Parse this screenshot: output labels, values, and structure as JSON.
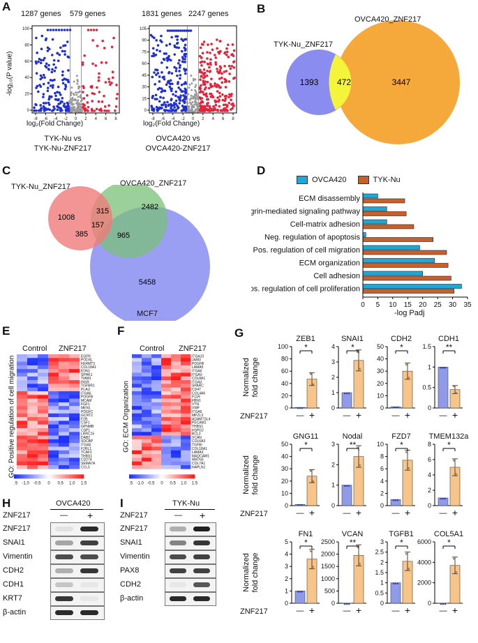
{
  "panel_labels": {
    "a": "A",
    "b": "B",
    "c": "C",
    "d": "D",
    "e": "E",
    "f": "F",
    "g": "G",
    "h": "H",
    "i": "I"
  },
  "volcano": {
    "y_label": "-log₁₀(P value)",
    "x_label": "log₂(Fold Change)",
    "plots": [
      {
        "down_count": "1287 genes",
        "up_count": "579 genes",
        "y_ticks": [
          "100",
          "80",
          "60",
          "40",
          "20",
          "0"
        ],
        "x_ticks": [
          "-8",
          "-6",
          "-4",
          "-2",
          "0",
          "2",
          "4",
          "6",
          "8"
        ],
        "caption_line1": "TYK-Nu vs",
        "caption_line2": "TYK-Nu-ZNF217"
      },
      {
        "down_count": "1831 genes",
        "up_count": "2247 genes",
        "y_ticks": [
          "105",
          "90",
          "75",
          "60",
          "45",
          "30",
          "15",
          "0"
        ],
        "x_ticks": [
          "-8",
          "-6",
          "-4",
          "-2",
          "0",
          "2",
          "4",
          "6",
          "8"
        ],
        "caption_line1": "OVCA420 vs",
        "caption_line2": "OVCA420-ZNF217"
      }
    ]
  },
  "venn_b": {
    "left_label": "TYK-Nu_ZNF217",
    "right_label": "OVCA420_ZNF217",
    "left_only": "1393",
    "overlap": "472",
    "right_only": "3447"
  },
  "venn_c": {
    "a_label": "TYK-Nu_ZNF217",
    "b_label": "OVCA420_ZNF217",
    "c_label": "MCF7",
    "a_only": "1008",
    "ab": "315",
    "b_only": "2482",
    "abc": "157",
    "ac": "385",
    "bc": "965",
    "c_only": "5458"
  },
  "chart_data": [
    {
      "type": "bar",
      "orientation": "horizontal",
      "legend": [
        "OVCA420",
        "TYK-Nu"
      ],
      "xlabel": "-log Padj",
      "xlim": [
        0,
        35
      ],
      "x_ticks": [
        "0",
        "5",
        "10",
        "15",
        "20",
        "25",
        "30",
        "35"
      ],
      "categories": [
        "ECM disassembly",
        "Integrin-mediated signaling pathway",
        "Cell-matrix adhesion",
        "Neg. regulation of apoptosis",
        "Pos. regulation of cell migration",
        "ECM organization",
        "Cell adhesion",
        "Pos. regulation of cell proliferation"
      ],
      "series": [
        {
          "name": "OVCA420",
          "color": "#1ea8d8",
          "values": [
            5,
            8,
            8,
            1,
            19,
            24,
            20,
            33
          ]
        },
        {
          "name": "TYK-Nu",
          "color": "#c8602c",
          "values": [
            14,
            14.5,
            17,
            23.5,
            28,
            28.5,
            29.5,
            30.5
          ]
        }
      ]
    },
    {
      "type": "bar",
      "panel": "G",
      "y_label": "Normalized fold change",
      "group_label": "ZNF217",
      "x_ticks": [
        "—",
        "+"
      ],
      "colors": {
        "control": "#8f9ae8",
        "znf217": "#f7c48a"
      },
      "genes": [
        {
          "name": "ZEB1",
          "values": [
            1,
            47
          ],
          "yticks": [
            "0",
            "20",
            "40",
            "60",
            "80",
            "100"
          ],
          "ymax": 100,
          "sig": "*"
        },
        {
          "name": "SNAI1",
          "values": [
            1,
            3.1
          ],
          "yticks": [
            "0",
            "1",
            "2",
            "3",
            "4"
          ],
          "ymax": 4,
          "sig": "*"
        },
        {
          "name": "CDH2",
          "values": [
            1,
            30
          ],
          "yticks": [
            "0",
            "10",
            "20",
            "30",
            "40",
            "50"
          ],
          "ymax": 50,
          "sig": "*"
        },
        {
          "name": "CDH1",
          "values": [
            1,
            0.45
          ],
          "yticks": [
            "0",
            "0.5",
            "1",
            "1.5"
          ],
          "ymax": 1.5,
          "sig": "**"
        },
        {
          "name": "GNG11",
          "values": [
            1,
            24
          ],
          "yticks": [
            "0",
            "10",
            "20",
            "30",
            "40",
            "50"
          ],
          "ymax": 50,
          "sig": "*"
        },
        {
          "name": "Nodal",
          "values": [
            1,
            2.4
          ],
          "yticks": [
            "0",
            "1",
            "2",
            "3"
          ],
          "ymax": 3,
          "sig": "**"
        },
        {
          "name": "FZD7",
          "values": [
            1,
            7.4
          ],
          "yticks": [
            "0",
            "2",
            "4",
            "6",
            "8",
            "10"
          ],
          "ymax": 10,
          "sig": "*"
        },
        {
          "name": "TMEM132a",
          "values": [
            1,
            5
          ],
          "yticks": [
            "0",
            "2",
            "4",
            "6",
            "8"
          ],
          "ymax": 8,
          "sig": "*"
        },
        {
          "name": "FN1",
          "values": [
            1,
            3.6
          ],
          "yticks": [
            "0",
            "1",
            "2",
            "3",
            "4",
            "5"
          ],
          "ymax": 5,
          "sig": "*"
        },
        {
          "name": "VCAN",
          "values": [
            1,
            1950
          ],
          "yticks": [
            "0",
            "500",
            "1000",
            "1500",
            "2000",
            "2500"
          ],
          "ymax": 2500,
          "sig": "**"
        },
        {
          "name": "TGFB1",
          "values": [
            1,
            2.05
          ],
          "yticks": [
            "0",
            "0.5",
            "1",
            "1.5",
            "2",
            "2.5",
            "3"
          ],
          "ymax": 3,
          "sig": "*"
        },
        {
          "name": "COL5A1",
          "values": [
            1,
            3700
          ],
          "yticks": [
            "0",
            "2000",
            "4000",
            "6000"
          ],
          "ymax": 6000,
          "sig": "*"
        }
      ]
    }
  ],
  "heatmap_e": {
    "control_label": "Control",
    "znf_label": "ZNF217",
    "go_label": "GO: Positive regulation of cell migration",
    "genes": [
      "EGFR",
      "PODXL",
      "FERMT3",
      "COL18A1",
      "EDN1",
      "SPHK1",
      "TIAM1",
      "INSR",
      "TGFBR1",
      "PLAU",
      "ITGA6",
      "PDGFB",
      "MCAM",
      "FGF1",
      "MEN1",
      "PDGFC",
      "GCNT2",
      "F2R",
      "CSF1",
      "GPNMB",
      "CSP1",
      "LRRC15",
      "DAB2",
      "SDCBP",
      "ITGA5",
      "F2RL1",
      "TCAF2",
      "THBS1",
      "CD274",
      "SEMA7A",
      "CCL5"
    ],
    "scale": [
      "-1.5",
      "-1.0",
      "-0.5",
      "0",
      "0.5",
      "1.0",
      "1.5"
    ]
  },
  "heatmap_f": {
    "control_label": "Control",
    "znf_label": "ZNF217",
    "go_label": "GO: ECM Organization",
    "genes": [
      "ITGA10",
      "JAM3",
      "PDGFB",
      "LAMA5",
      "ITGA6",
      "ITGAX",
      "COL8A1",
      "ITGA3",
      "SPARC",
      "CD47",
      "COL4A6",
      "F11R",
      "FBN1",
      "VTN",
      "VWF",
      "ITGA5",
      "MPZL3",
      "ADAMTSL4",
      "PECAM1",
      "THBS1",
      "HSPG2",
      "BCL3",
      "VCAN",
      "COL6A3",
      "TGFBI",
      "COL18A1",
      "LAMA3",
      "MADCAM1",
      "MATN3",
      "COL7A1",
      "HAPLN1"
    ],
    "scale": [
      "-1.5",
      "-1.0",
      "-0.5",
      "0",
      "0.5",
      "1.0",
      "1.5"
    ]
  },
  "blot_h": {
    "cell_line": "OVCA420",
    "row_label": "ZNF217",
    "minus": "—",
    "plus": "+",
    "proteins": [
      "ZNF217",
      "SNAI1",
      "Vimentin",
      "CDH2",
      "CDH1",
      "KRT7",
      "β-actin"
    ]
  },
  "blot_i": {
    "cell_line": "TYK-Nu",
    "row_label": "ZNF217",
    "minus": "—",
    "plus": "+",
    "proteins": [
      "ZNF217",
      "SNAI1",
      "Vimentin",
      "PAX8",
      "CDH2",
      "β-actin"
    ]
  }
}
